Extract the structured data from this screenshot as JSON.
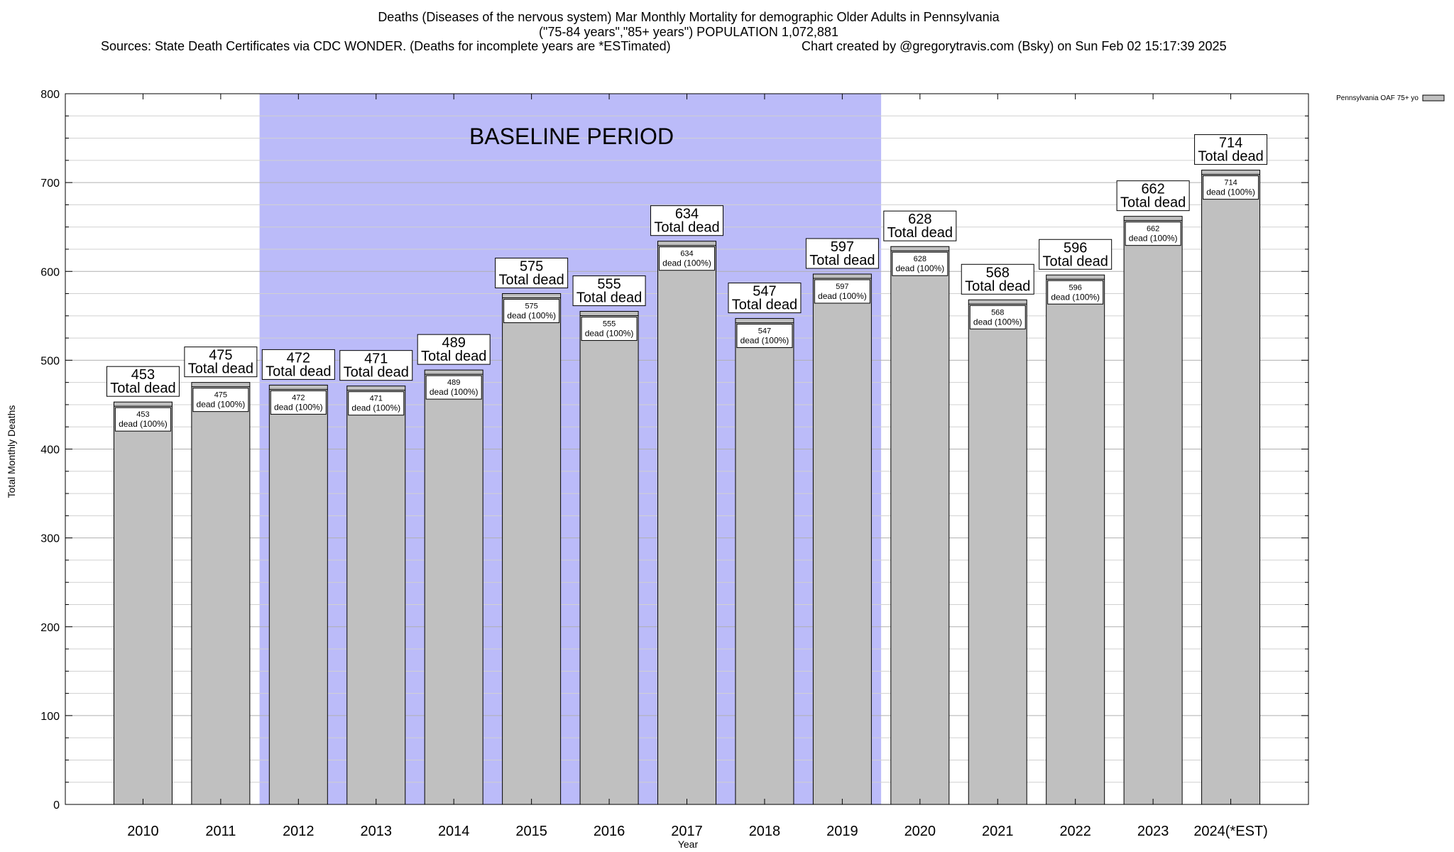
{
  "chart_data": {
    "type": "bar",
    "title_lines": [
      "Deaths (Diseases of the nervous system) Mar Monthly Mortality for demographic Older Adults in Pennsylvania",
      "(\"75-84 years\",\"85+ years\") POPULATION 1,072,881",
      "Sources: State Death Certificates via CDC WONDER. (Deaths for incomplete years are *ESTimated)",
      "Chart created by @gregorytravis.com (Bsky) on Sun Feb 02 15:17:39 2025"
    ],
    "xlabel": "Year",
    "ylabel": "Total Monthly Deaths",
    "ylim": [
      0,
      800
    ],
    "yticks": [
      0,
      100,
      200,
      300,
      400,
      500,
      600,
      700,
      800
    ],
    "categories": [
      "2010",
      "2011",
      "2012",
      "2013",
      "2014",
      "2015",
      "2016",
      "2017",
      "2018",
      "2019",
      "2020",
      "2021",
      "2022",
      "2023",
      "2024(*EST)"
    ],
    "values": [
      453,
      475,
      472,
      471,
      489,
      575,
      555,
      634,
      547,
      597,
      628,
      568,
      596,
      662,
      714
    ],
    "series": [
      {
        "name": "Pennsylvania OAF 75+ yo",
        "values": [
          453,
          475,
          472,
          471,
          489,
          575,
          555,
          634,
          547,
          597,
          628,
          568,
          596,
          662,
          714
        ]
      }
    ],
    "total_label_suffix": "Total dead",
    "inner_label_suffix": "dead (100%)",
    "baseline_period": {
      "label": "BASELINE PERIOD",
      "from": "2012",
      "to": "2019"
    },
    "legend_position": "top-right",
    "grid": "horizontal",
    "colors": {
      "bar": "#c0c0c0",
      "baseline": "#bbbbf9",
      "text": "#000000"
    }
  }
}
